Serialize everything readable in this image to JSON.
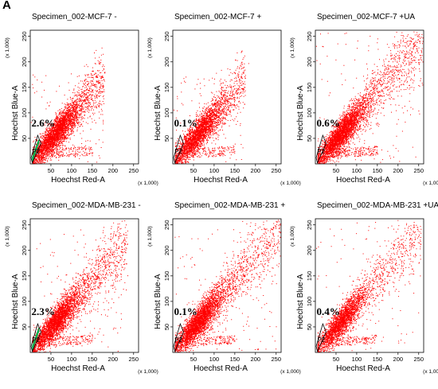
{
  "figure_label": "A",
  "chart_data": [
    {
      "type": "scatter",
      "title": "Specimen_002-MCF-7 -",
      "xlabel": "Hoechst Red-A",
      "ylabel": "Hoechst Blue-A",
      "x_multiplier": "(x 1,000)",
      "y_multiplier": "(x 1,000)",
      "xlim": [
        0,
        262
      ],
      "ylim": [
        0,
        262
      ],
      "xticks": [
        "50",
        "100",
        "150",
        "200",
        "250"
      ],
      "yticks": [
        "50",
        "100",
        "150",
        "200",
        "250"
      ],
      "gate_label": "P2",
      "gate_percent": "2.6%",
      "series_color": "#ff0000",
      "gate_color": "#00b050",
      "distribution": {
        "spread_max": 175,
        "density": 4200,
        "gate_fill": true
      }
    },
    {
      "type": "scatter",
      "title": "Specimen_002-MCF-7 +",
      "xlabel": "Hoechst Red-A",
      "ylabel": "Hoechst Blue-A",
      "x_multiplier": "(x 1,000)",
      "y_multiplier": "(x 1,000)",
      "xlim": [
        0,
        262
      ],
      "ylim": [
        0,
        262
      ],
      "xticks": [
        "50",
        "100",
        "150",
        "200",
        "250"
      ],
      "yticks": [
        "50",
        "100",
        "150",
        "200",
        "250"
      ],
      "gate_label": "P2",
      "gate_percent": "0.1%",
      "series_color": "#ff0000",
      "gate_color": "#00b050",
      "distribution": {
        "spread_max": 170,
        "density": 3600,
        "gate_fill": false
      }
    },
    {
      "type": "scatter",
      "title": "Specimen_002-MCF-7 +UA",
      "xlabel": "Hoechst Red-A",
      "ylabel": "Hoechst Blue-A",
      "x_multiplier": "(x 1,000)",
      "y_multiplier": "(x 1,000)",
      "xlim": [
        0,
        262
      ],
      "ylim": [
        0,
        262
      ],
      "xticks": [
        "50",
        "100",
        "150",
        "200",
        "250"
      ],
      "yticks": [
        "50",
        "100",
        "150",
        "200",
        "250"
      ],
      "gate_label": "P2",
      "gate_percent": "0.6%",
      "series_color": "#ff0000",
      "gate_color": "#00b050",
      "distribution": {
        "spread_max": 255,
        "density": 4600,
        "gate_fill": false
      }
    },
    {
      "type": "scatter",
      "title": "Specimen_002-MDA-MB-231 -",
      "xlabel": "Hoechst Red-A",
      "ylabel": "Hoechst Blue-A",
      "x_multiplier": "(x 1,000)",
      "y_multiplier": "(x 1,000)",
      "xlim": [
        0,
        262
      ],
      "ylim": [
        0,
        262
      ],
      "xticks": [
        "50",
        "100",
        "150",
        "200",
        "250"
      ],
      "yticks": [
        "50",
        "100",
        "150",
        "200",
        "250"
      ],
      "gate_label": "P2",
      "gate_percent": "2.3%",
      "series_color": "#ff0000",
      "gate_color": "#00b050",
      "distribution": {
        "spread_max": 230,
        "density": 4200,
        "gate_fill": true
      }
    },
    {
      "type": "scatter",
      "title": "Specimen_002-MDA-MB-231 +",
      "xlabel": "Hoechst Red-A",
      "ylabel": "Hoechst Blue-A",
      "x_multiplier": "(x 1,000)",
      "y_multiplier": "(x 1,000)",
      "xlim": [
        0,
        262
      ],
      "ylim": [
        0,
        262
      ],
      "xticks": [
        "50",
        "100",
        "150",
        "200",
        "250"
      ],
      "yticks": [
        "50",
        "100",
        "150",
        "200",
        "250"
      ],
      "gate_label": "P2",
      "gate_percent": "0.1%",
      "series_color": "#ff0000",
      "gate_color": "#00b050",
      "distribution": {
        "spread_max": 255,
        "density": 4400,
        "gate_fill": false
      }
    },
    {
      "type": "scatter",
      "title": "Specimen_002-MDA-MB-231 +UA",
      "xlabel": "Hoechst Red-A",
      "ylabel": "Hoechst Blue-A",
      "x_multiplier": "(x 1,000)",
      "y_multiplier": "(x 1,000)",
      "xlim": [
        0,
        262
      ],
      "ylim": [
        0,
        262
      ],
      "xticks": [
        "50",
        "100",
        "150",
        "200",
        "250"
      ],
      "yticks": [
        "50",
        "100",
        "150",
        "200",
        "250"
      ],
      "gate_label": "P2",
      "gate_percent": "0.4%",
      "series_color": "#ff0000",
      "gate_color": "#00b050",
      "distribution": {
        "spread_max": 250,
        "density": 3400,
        "gate_fill": false
      }
    }
  ]
}
